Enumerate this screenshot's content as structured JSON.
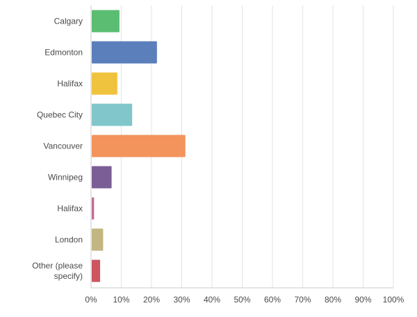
{
  "chart_data": {
    "type": "bar",
    "orientation": "horizontal",
    "title": "",
    "xlabel": "",
    "ylabel": "",
    "xlim": [
      0,
      100
    ],
    "grid": true,
    "tick_labels": [
      "0%",
      "10%",
      "20%",
      "30%",
      "40%",
      "50%",
      "60%",
      "70%",
      "80%",
      "90%",
      "100%"
    ],
    "categories": [
      [
        "Calgary"
      ],
      [
        "Edmonton"
      ],
      [
        "Halifax"
      ],
      [
        "Quebec City"
      ],
      [
        "Vancouver"
      ],
      [
        "Winnipeg"
      ],
      [
        "Halifax"
      ],
      [
        "London"
      ],
      [
        "Other (please",
        "specify)"
      ]
    ],
    "values": [
      9.4,
      21.8,
      8.7,
      13.6,
      31.2,
      6.8,
      1.0,
      4.0,
      3.0
    ],
    "colors": [
      "#5bbd72",
      "#5b7fbb",
      "#f0c33f",
      "#80c6ca",
      "#f2945c",
      "#7b5e96",
      "#c46c98",
      "#c2b782",
      "#cc5560"
    ]
  }
}
